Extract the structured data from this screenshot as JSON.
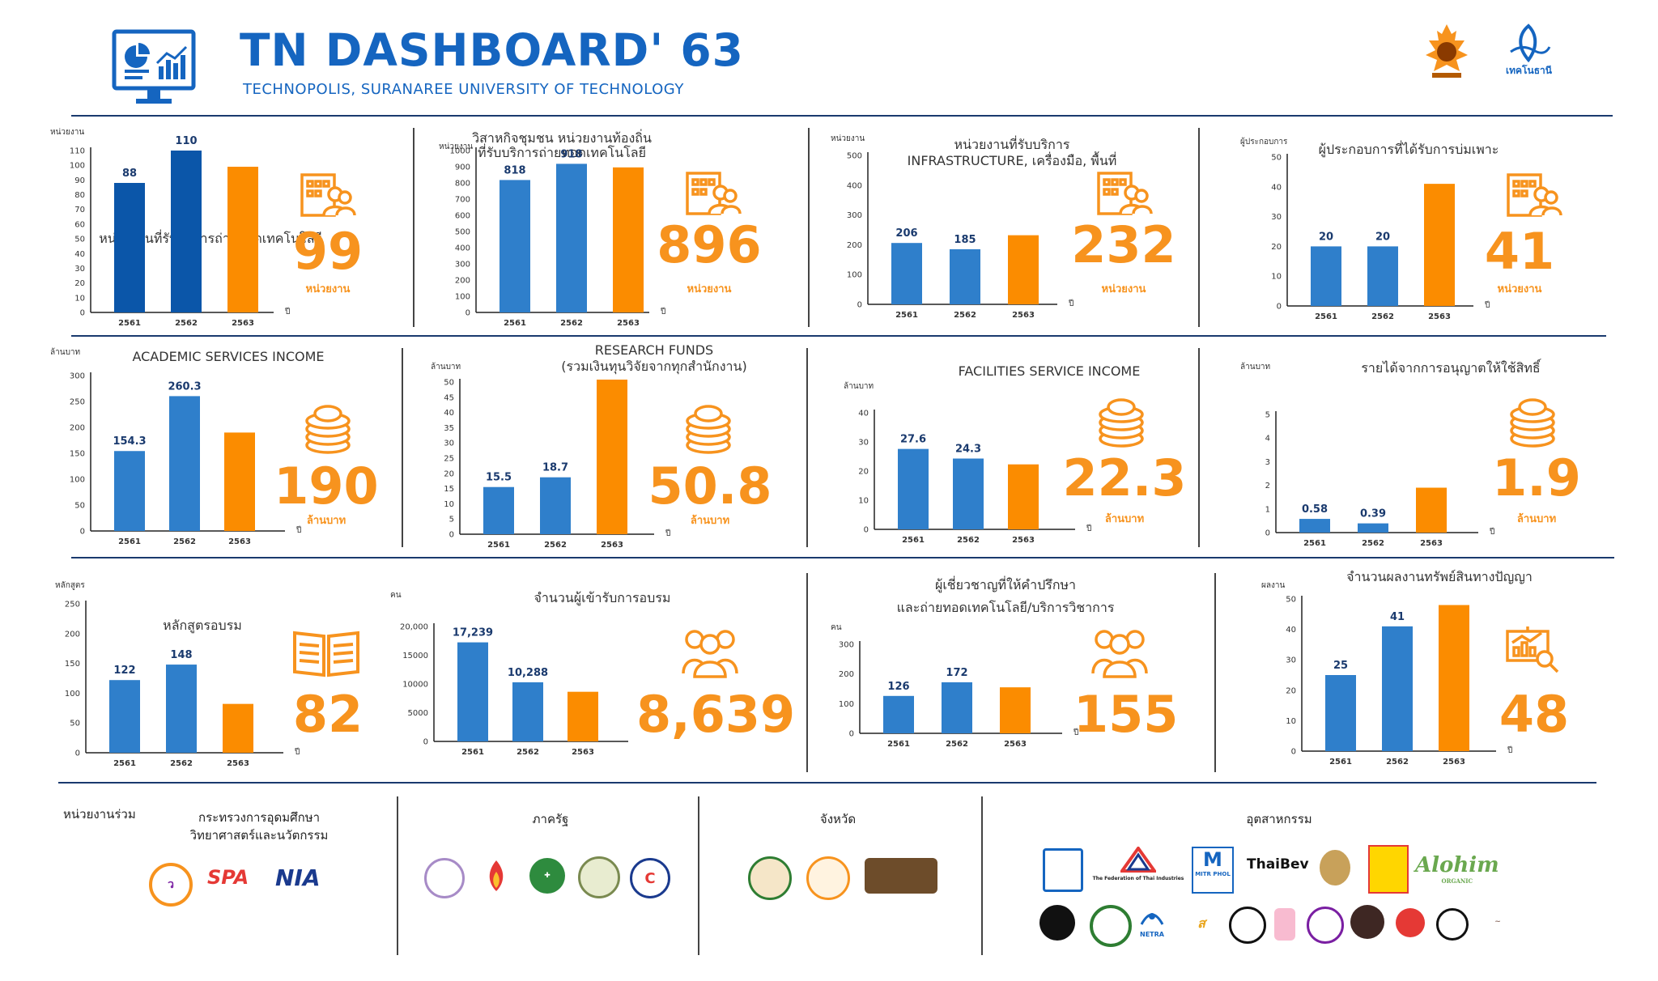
{
  "header": {
    "title": "TN DASHBOARD' 63",
    "subtitle": "TECHNOPOLIS, SURANAREE UNIVERSITY OF TECHNOLOGY",
    "icon": "dashboard-monitor-icon"
  },
  "colors": {
    "bar_dark": "#0b56a9",
    "bar_blue": "#2f7fcb",
    "bar_orange": "#fb8c00",
    "accent": "#f7931e",
    "title_blue": "#1565c0"
  },
  "chart_data": [
    {
      "id": "c1",
      "type": "bar",
      "title": "หน่วยงานที่รับบริการถ่ายทอดเทคโนโลยี",
      "ylabel": "หน่วยงาน",
      "xlabel": "ปี",
      "categories": [
        "2561",
        "2562",
        "2563"
      ],
      "values": [
        88,
        110,
        99
      ],
      "labels": [
        "88",
        "110",
        ""
      ],
      "ylim": [
        0,
        110
      ],
      "ticks": [
        0,
        10,
        20,
        30,
        40,
        50,
        60,
        70,
        80,
        90,
        100,
        110
      ],
      "colors": [
        "#0b56a9",
        "#0b56a9",
        "#fb8c00"
      ],
      "kpi": {
        "value": "99",
        "unit": "หน่วยงาน",
        "icon": "building-people-icon"
      }
    },
    {
      "id": "c2",
      "type": "bar",
      "title": "วิสาหกิจชุมชน หน่วยงานท้องถิ่น",
      "subtitle": "ที่รับบริการถ่ายทอดเทคโนโลยี",
      "ylabel": "หน่วยงาน",
      "xlabel": "ปี",
      "categories": [
        "2561",
        "2562",
        "2563"
      ],
      "values": [
        818,
        918,
        896
      ],
      "labels": [
        "818",
        "918",
        ""
      ],
      "ylim": [
        0,
        1000
      ],
      "ticks": [
        0,
        100,
        200,
        300,
        400,
        500,
        600,
        700,
        800,
        900,
        1000
      ],
      "colors": [
        "#2f7fcb",
        "#2f7fcb",
        "#fb8c00"
      ],
      "kpi": {
        "value": "896",
        "unit": "หน่วยงาน",
        "icon": "building-people-icon"
      }
    },
    {
      "id": "c3",
      "type": "bar",
      "title": "หน่วยงานที่รับบริการ",
      "subtitle": "INFRASTRUCTURE, เครื่องมือ, พื้นที่",
      "ylabel": "หน่วยงาน",
      "xlabel": "ปี",
      "categories": [
        "2561",
        "2562",
        "2563"
      ],
      "values": [
        206,
        185,
        232
      ],
      "labels": [
        "206",
        "185",
        ""
      ],
      "ylim": [
        0,
        500
      ],
      "ticks": [
        0,
        100,
        200,
        300,
        400,
        500
      ],
      "colors": [
        "#2f7fcb",
        "#2f7fcb",
        "#fb8c00"
      ],
      "kpi": {
        "value": "232",
        "unit": "หน่วยงาน",
        "icon": "building-people-icon"
      }
    },
    {
      "id": "c4",
      "type": "bar",
      "title": "ผู้ประกอบการที่ได้รับการบ่มเพาะ",
      "ylabel": "ผู้ประกอบการ",
      "xlabel": "ปี",
      "categories": [
        "2561",
        "2562",
        "2563"
      ],
      "values": [
        20,
        20,
        41
      ],
      "labels": [
        "20",
        "20",
        ""
      ],
      "ylim": [
        0,
        50
      ],
      "ticks": [
        0,
        10,
        20,
        30,
        40,
        50
      ],
      "colors": [
        "#2f7fcb",
        "#2f7fcb",
        "#fb8c00"
      ],
      "kpi": {
        "value": "41",
        "unit": "หน่วยงาน",
        "icon": "building-people-icon"
      }
    },
    {
      "id": "c5",
      "type": "bar",
      "title": "ACADEMIC SERVICES INCOME",
      "ylabel": "ล้านบาท",
      "xlabel": "ปี",
      "categories": [
        "2561",
        "2562",
        "2563"
      ],
      "values": [
        154.3,
        260.3,
        190
      ],
      "labels": [
        "154.3",
        "260.3",
        ""
      ],
      "ylim": [
        0,
        300
      ],
      "ticks": [
        0,
        50,
        100,
        150,
        200,
        250,
        300
      ],
      "colors": [
        "#2f7fcb",
        "#2f7fcb",
        "#fb8c00"
      ],
      "kpi": {
        "value": "190",
        "unit": "ล้านบาท",
        "icon": "coin-stack-icon"
      }
    },
    {
      "id": "c6",
      "type": "bar",
      "title": "RESEARCH FUNDS",
      "subtitle": "(รวมเงินทุนวิจัยจากทุกสำนักงาน)",
      "ylabel": "ล้านบาท",
      "xlabel": "ปี",
      "categories": [
        "2561",
        "2562",
        "2563"
      ],
      "values": [
        15.5,
        18.7,
        50.8
      ],
      "labels": [
        "15.5",
        "18.7",
        ""
      ],
      "ylim": [
        0,
        50
      ],
      "ticks": [
        0,
        5,
        10,
        15,
        20,
        25,
        30,
        35,
        40,
        45,
        50
      ],
      "colors": [
        "#2f7fcb",
        "#2f7fcb",
        "#fb8c00"
      ],
      "kpi": {
        "value": "50.8",
        "unit": "ล้านบาท",
        "icon": "coin-stack-icon"
      }
    },
    {
      "id": "c7",
      "type": "bar",
      "title": "FACILITIES SERVICE INCOME",
      "ylabel": "ล้านบาท",
      "xlabel": "ปี",
      "categories": [
        "2561",
        "2562",
        "2563"
      ],
      "values": [
        27.6,
        24.3,
        22.3
      ],
      "labels": [
        "27.6",
        "24.3",
        ""
      ],
      "ylim": [
        0,
        40
      ],
      "ticks": [
        0,
        10,
        20,
        30,
        40
      ],
      "colors": [
        "#2f7fcb",
        "#2f7fcb",
        "#fb8c00"
      ],
      "kpi": {
        "value": "22.3",
        "unit": "ล้านบาท",
        "icon": "coin-stack-icon"
      }
    },
    {
      "id": "c8",
      "type": "bar",
      "title": "รายได้จากการอนุญาตให้ใช้สิทธิ์",
      "ylabel": "ล้านบาท",
      "xlabel": "ปี",
      "categories": [
        "2561",
        "2562",
        "2563"
      ],
      "values": [
        0.58,
        0.39,
        1.9
      ],
      "labels": [
        "0.58",
        "0.39",
        ""
      ],
      "ylim": [
        0,
        5
      ],
      "ticks": [
        0,
        1,
        2,
        3,
        4,
        5
      ],
      "colors": [
        "#2f7fcb",
        "#2f7fcb",
        "#fb8c00"
      ],
      "kpi": {
        "value": "1.9",
        "unit": "ล้านบาท",
        "icon": "coin-stack-icon"
      }
    },
    {
      "id": "c9",
      "type": "bar",
      "title": "หลักสูตรอบรม",
      "ylabel": "หลักสูตร",
      "xlabel": "ปี",
      "categories": [
        "2561",
        "2562",
        "2563"
      ],
      "values": [
        122,
        148,
        82
      ],
      "labels": [
        "122",
        "148",
        ""
      ],
      "ylim": [
        0,
        250
      ],
      "ticks": [
        0,
        50,
        100,
        150,
        200,
        250
      ],
      "colors": [
        "#2f7fcb",
        "#2f7fcb",
        "#fb8c00"
      ],
      "kpi": {
        "value": "82",
        "unit": "",
        "icon": "open-book-icon"
      }
    },
    {
      "id": "c10",
      "type": "bar",
      "title": "จำนวนผู้เข้ารับการอบรม",
      "ylabel": "คน",
      "xlabel": "",
      "categories": [
        "2561",
        "2562",
        "2563"
      ],
      "values": [
        17239,
        10288,
        8639
      ],
      "labels": [
        "17,239",
        "10,288",
        ""
      ],
      "ylim": [
        0,
        20000
      ],
      "ticks": [
        0,
        5000,
        10000,
        15000,
        20000
      ],
      "tick_labels": [
        "0",
        "5000",
        "10000",
        "15000",
        "20,000"
      ],
      "colors": [
        "#2f7fcb",
        "#2f7fcb",
        "#fb8c00"
      ],
      "kpi": {
        "value": "8,639",
        "unit": "",
        "icon": "people-group-icon"
      }
    },
    {
      "id": "c11",
      "type": "bar",
      "title": "ผู้เชี่ยวชาญที่ให้คำปรึกษา",
      "subtitle": "และถ่ายทอดเทคโนโลยี/บริการวิชาการ",
      "ylabel": "คน",
      "xlabel": "ปี",
      "categories": [
        "2561",
        "2562",
        "2563"
      ],
      "values": [
        126,
        172,
        155
      ],
      "labels": [
        "126",
        "172",
        ""
      ],
      "ylim": [
        0,
        300
      ],
      "ticks": [
        0,
        100,
        200,
        300
      ],
      "colors": [
        "#2f7fcb",
        "#2f7fcb",
        "#fb8c00"
      ],
      "kpi": {
        "value": "155",
        "unit": "",
        "icon": "people-group-icon"
      }
    },
    {
      "id": "c12",
      "type": "bar",
      "title": "จำนวนผลงานทรัพย์สินทางปัญญา",
      "ylabel": "ผลงาน",
      "xlabel": "ปี",
      "categories": [
        "2561",
        "2562",
        "2563"
      ],
      "values": [
        25,
        41,
        48
      ],
      "labels": [
        "25",
        "41",
        ""
      ],
      "ylim": [
        0,
        50
      ],
      "ticks": [
        0,
        10,
        20,
        30,
        40,
        50
      ],
      "colors": [
        "#2f7fcb",
        "#2f7fcb",
        "#fb8c00"
      ],
      "kpi": {
        "value": "48",
        "unit": "",
        "icon": "presentation-magnifier-icon"
      }
    }
  ],
  "partners": {
    "heading": "หน่วยงานร่วม",
    "ministry": {
      "label": "กระทรวงการอุดมศึกษา\nวิทยาศาสตร์และนวัตกรรม",
      "logos": [
        "SPA",
        "NIA"
      ]
    },
    "government": {
      "label": "ภาครัฐ"
    },
    "province": {
      "label": "จังหวัด"
    },
    "industry": {
      "label": "อุตสาหกรรม",
      "logos": [
        "The Federation of Thai Industries",
        "MITR PHOL",
        "ThaiBev",
        "Alohim",
        "ORGANIC",
        "NETRA"
      ]
    }
  },
  "logos": {
    "right1": "university-seal-icon",
    "right2": "technopolis-logo-icon",
    "right2_text": "เทคโนธานี"
  }
}
